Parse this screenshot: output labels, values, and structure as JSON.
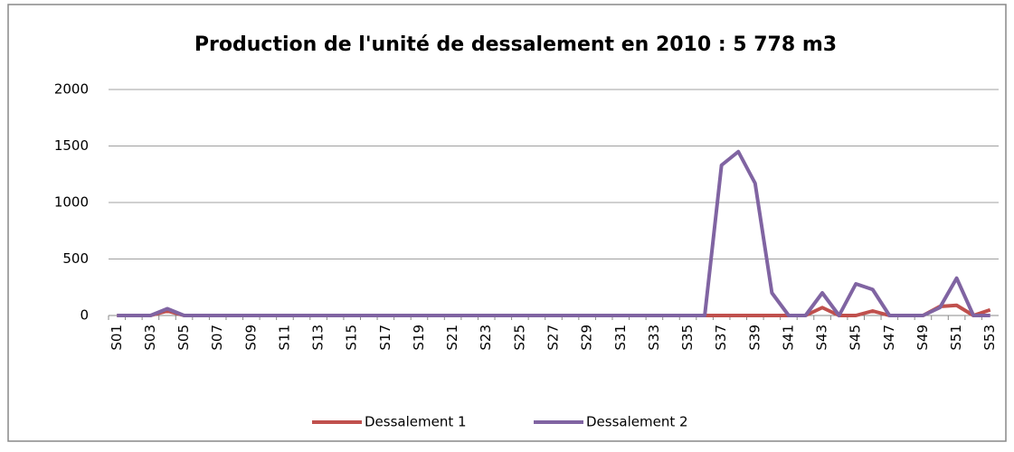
{
  "chart_data": {
    "type": "line",
    "title": "Production de l'unité de dessalement en 2010 : 5 778 m3",
    "categories": [
      "S01",
      null,
      "S03",
      null,
      "S05",
      null,
      "S07",
      null,
      "S09",
      null,
      "S11",
      null,
      "S13",
      null,
      "S15",
      null,
      "S17",
      null,
      "S19",
      null,
      "S21",
      null,
      "S23",
      null,
      "S25",
      null,
      "S27",
      null,
      "S29",
      null,
      "S31",
      null,
      "S33",
      null,
      "S35",
      null,
      "S37",
      null,
      "S39",
      null,
      "S41",
      null,
      "S43",
      null,
      "S45",
      null,
      "S47",
      null,
      "S49",
      null,
      "S51",
      null,
      "S53"
    ],
    "series": [
      {
        "name": "Dessalement 1",
        "color": "#c0504d",
        "values": [
          0,
          0,
          0,
          40,
          0,
          0,
          0,
          0,
          0,
          0,
          0,
          0,
          0,
          0,
          0,
          0,
          0,
          0,
          0,
          0,
          0,
          0,
          0,
          0,
          0,
          0,
          0,
          0,
          0,
          0,
          0,
          0,
          0,
          0,
          0,
          0,
          0,
          0,
          0,
          0,
          0,
          0,
          70,
          0,
          0,
          40,
          0,
          0,
          0,
          80,
          90,
          0,
          50
        ]
      },
      {
        "name": "Dessalement 2",
        "color": "#8064a2",
        "values": [
          0,
          0,
          0,
          60,
          0,
          0,
          0,
          0,
          0,
          0,
          0,
          0,
          0,
          0,
          0,
          0,
          0,
          0,
          0,
          0,
          0,
          0,
          0,
          0,
          0,
          0,
          0,
          0,
          0,
          0,
          0,
          0,
          0,
          0,
          0,
          0,
          1330,
          1450,
          1170,
          200,
          0,
          0,
          200,
          0,
          280,
          230,
          0,
          0,
          0,
          70,
          330,
          0,
          0
        ]
      }
    ],
    "ylim": [
      0,
      2000
    ],
    "yticks": [
      0,
      500,
      1000,
      1500,
      2000
    ],
    "grid": true,
    "legend": "bottom"
  }
}
